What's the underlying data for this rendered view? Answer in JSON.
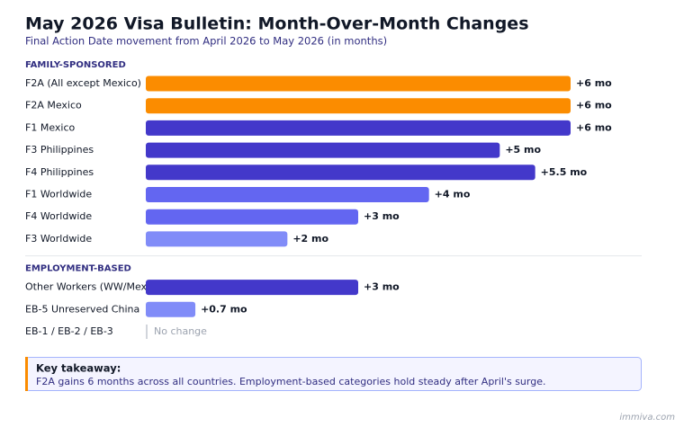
{
  "chart_data": {
    "type": "bar",
    "title": "May 2026 Visa Bulletin: Month-Over-Month Changes",
    "subtitle": "Final Action Date movement from April 2026 to May 2026 (in months)",
    "xlim": [
      0,
      6
    ],
    "groups": [
      {
        "name": "FAMILY-SPONSORED",
        "categories": [
          "F2A (All except Mexico)",
          "F2A Mexico",
          "F1 Mexico",
          "F3 Philippines",
          "F4 Philippines",
          "F1 Worldwide",
          "F4 Worldwide",
          "F3 Worldwide"
        ],
        "values": [
          6,
          6,
          6,
          5,
          5.5,
          4,
          3,
          2
        ],
        "value_labels": [
          "+6 mo",
          "+6 mo",
          "+6 mo",
          "+5 mo",
          "+5.5 mo",
          "+4 mo",
          "+3 mo",
          "+2 mo"
        ],
        "colors": [
          "#fb8c00",
          "#fb8c00",
          "#4338ca",
          "#4338ca",
          "#4338ca",
          "#6366f1",
          "#6366f1",
          "#818cf8"
        ]
      },
      {
        "name": "EMPLOYMENT-BASED",
        "categories": [
          "Other Workers (WW/Mex)",
          "EB-5 Unreserved China",
          "EB-1 / EB-2 / EB-3"
        ],
        "values": [
          3,
          0.7,
          0
        ],
        "value_labels": [
          "+3 mo",
          "+0.7 mo",
          "No change"
        ],
        "colors": [
          "#4338ca",
          "#818cf8",
          "#d1d5db"
        ]
      }
    ],
    "takeaway": {
      "title": "Key takeaway:",
      "text": "F2A gains 6 months across all countries. Employment-based categories hold steady after April's surge."
    },
    "footer": "immiva.com"
  }
}
